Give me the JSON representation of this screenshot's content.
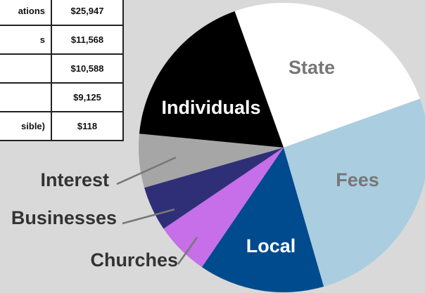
{
  "table": {
    "rows": [
      [
        "ations",
        "$25,947"
      ],
      [
        "s",
        "$11,568"
      ],
      [
        "",
        "$10,588"
      ],
      [
        "",
        "$9,125"
      ],
      [
        "sible)",
        "$118"
      ]
    ]
  },
  "chart_data": {
    "type": "pie",
    "categories": [
      "State",
      "Fees",
      "Local",
      "Churches",
      "Businesses",
      "Interest",
      "Individuals"
    ],
    "values": [
      25,
      26,
      14,
      6,
      5,
      6,
      18
    ],
    "colors": [
      "#ffffff",
      "#aacde0",
      "#004b8d",
      "#c76ee9",
      "#2f2f78",
      "#a6a6a6",
      "#000000"
    ]
  }
}
